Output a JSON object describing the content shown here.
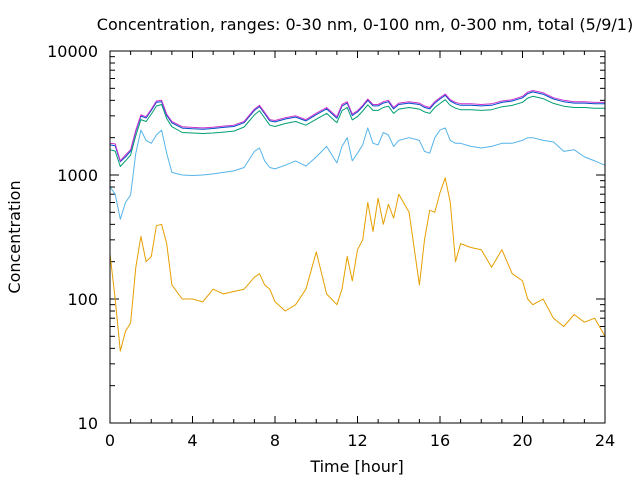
{
  "chart_data": {
    "type": "line",
    "title": "Concentration, ranges: 0-30 nm, 0-100 nm, 0-300 nm, total (5/9/1)",
    "xlabel": "Time [hour]",
    "ylabel": "Concentration",
    "xlim": [
      0,
      24
    ],
    "ylim": [
      10,
      10000
    ],
    "yscale": "log",
    "grid": false,
    "legend": "none",
    "x_ticks": [
      "0",
      "4",
      "8",
      "12",
      "16",
      "20",
      "24"
    ],
    "y_ticks": [
      "10",
      "100",
      "1000",
      "10000"
    ],
    "x": [
      0,
      0.25,
      0.5,
      0.75,
      1,
      1.25,
      1.5,
      1.75,
      2,
      2.25,
      2.5,
      2.75,
      3,
      3.5,
      4,
      4.5,
      5,
      5.5,
      6,
      6.5,
      7,
      7.25,
      7.5,
      7.75,
      8,
      8.5,
      9,
      9.5,
      10,
      10.5,
      11,
      11.25,
      11.5,
      11.75,
      12,
      12.25,
      12.5,
      12.75,
      13,
      13.25,
      13.5,
      13.75,
      14,
      14.5,
      15,
      15.25,
      15.5,
      15.75,
      16,
      16.25,
      16.5,
      16.75,
      17,
      17.5,
      18,
      18.5,
      19,
      19.5,
      20,
      20.25,
      20.5,
      21,
      21.5,
      22,
      22.5,
      23,
      23.5,
      24
    ],
    "series": [
      {
        "color": "#cc33cc",
        "values": [
          1800,
          1780,
          1300,
          1450,
          1600,
          2300,
          3050,
          2950,
          3400,
          3950,
          4000,
          3100,
          2700,
          2450,
          2420,
          2400,
          2430,
          2480,
          2520,
          2700,
          3400,
          3650,
          3200,
          2800,
          2750,
          2900,
          3000,
          2800,
          3150,
          3500,
          2950,
          3700,
          3900,
          3100,
          3300,
          3650,
          4100,
          3700,
          3700,
          3900,
          4000,
          3500,
          3800,
          3900,
          3800,
          3600,
          3500,
          3900,
          4200,
          4500,
          4050,
          3850,
          3750,
          3750,
          3700,
          3750,
          3950,
          4050,
          4300,
          4650,
          4800,
          4600,
          4200,
          4000,
          3900,
          3900,
          3850,
          3850
        ]
      },
      {
        "color": "#004ecc",
        "values": [
          1750,
          1720,
          1280,
          1400,
          1560,
          2250,
          2980,
          2880,
          3320,
          3860,
          3900,
          3020,
          2630,
          2390,
          2360,
          2340,
          2370,
          2420,
          2460,
          2640,
          3320,
          3560,
          3120,
          2730,
          2680,
          2830,
          2930,
          2730,
          3070,
          3410,
          2870,
          3600,
          3800,
          3020,
          3220,
          3560,
          4000,
          3610,
          3610,
          3800,
          3900,
          3410,
          3700,
          3800,
          3700,
          3510,
          3410,
          3800,
          4100,
          4390,
          3950,
          3750,
          3650,
          3650,
          3610,
          3650,
          3850,
          3950,
          4190,
          4530,
          4680,
          4480,
          4100,
          3900,
          3800,
          3800,
          3750,
          3750
        ]
      },
      {
        "color": "#009e73",
        "values": [
          1600,
          1560,
          1170,
          1300,
          1450,
          2080,
          2800,
          2700,
          3100,
          3600,
          3700,
          2850,
          2450,
          2200,
          2180,
          2160,
          2180,
          2220,
          2260,
          2440,
          3050,
          3300,
          2880,
          2520,
          2460,
          2600,
          2700,
          2520,
          2820,
          3140,
          2640,
          3300,
          3500,
          2780,
          2960,
          3280,
          3680,
          3320,
          3320,
          3500,
          3590,
          3140,
          3400,
          3500,
          3400,
          3230,
          3140,
          3500,
          3770,
          4050,
          3640,
          3460,
          3360,
          3360,
          3320,
          3360,
          3550,
          3640,
          3860,
          4170,
          4310,
          4130,
          3780,
          3590,
          3500,
          3500,
          3450,
          3450
        ]
      },
      {
        "color": "#56b4e9",
        "values": [
          800,
          700,
          440,
          600,
          690,
          1500,
          2300,
          1900,
          1800,
          2100,
          2300,
          1500,
          1050,
          1000,
          990,
          1000,
          1020,
          1050,
          1080,
          1150,
          1550,
          1650,
          1300,
          1150,
          1120,
          1200,
          1300,
          1180,
          1400,
          1700,
          1250,
          1700,
          2000,
          1300,
          1500,
          1750,
          2400,
          1800,
          1750,
          2200,
          2100,
          1700,
          1900,
          2000,
          1900,
          1550,
          1500,
          2000,
          2300,
          2400,
          1900,
          1800,
          1800,
          1700,
          1650,
          1700,
          1800,
          1800,
          1900,
          2000,
          2000,
          1900,
          1850,
          1550,
          1600,
          1400,
          1300,
          1200
        ]
      },
      {
        "color": "#e69f00",
        "values": [
          230,
          100,
          38,
          55,
          64,
          180,
          320,
          200,
          220,
          390,
          400,
          280,
          130,
          100,
          100,
          95,
          120,
          110,
          115,
          120,
          150,
          160,
          130,
          120,
          95,
          80,
          90,
          120,
          240,
          110,
          90,
          120,
          220,
          140,
          250,
          300,
          600,
          350,
          650,
          400,
          580,
          450,
          700,
          500,
          130,
          300,
          520,
          500,
          720,
          950,
          600,
          200,
          280,
          260,
          250,
          180,
          250,
          160,
          140,
          100,
          90,
          100,
          70,
          60,
          75,
          65,
          70,
          50
        ]
      }
    ]
  }
}
